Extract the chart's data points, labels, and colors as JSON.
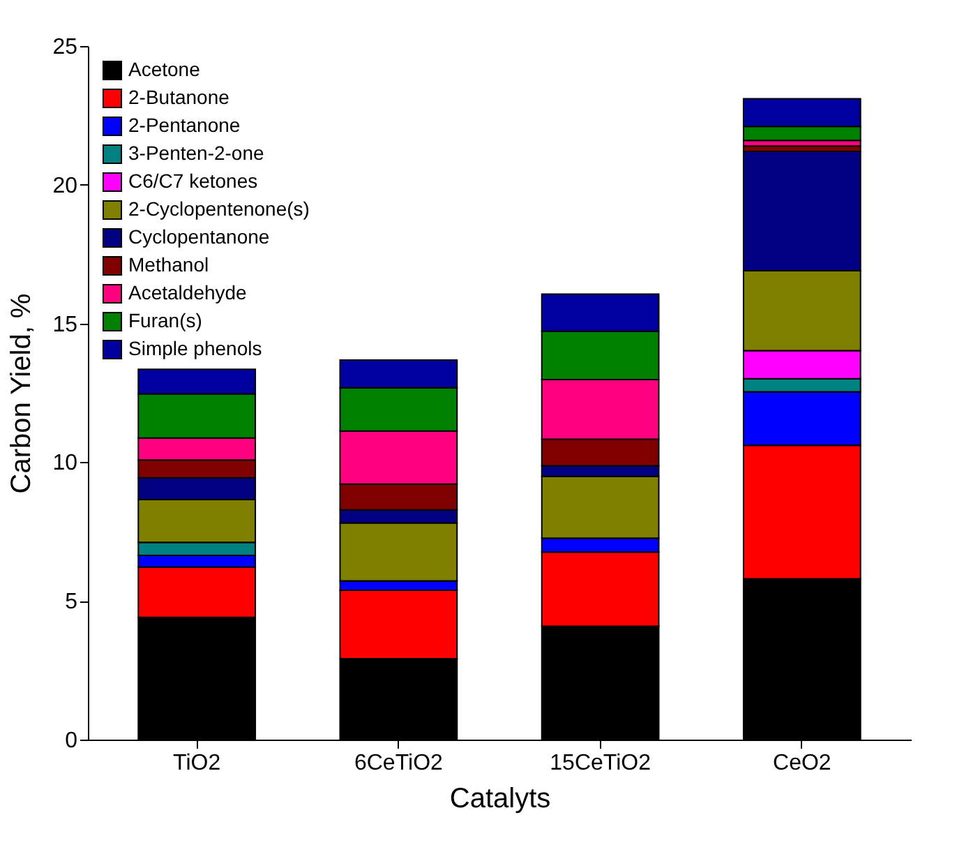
{
  "chart_data": {
    "type": "bar",
    "stacked": true,
    "xlabel": "Catalyts",
    "ylabel": "Carbon Yield, %",
    "categories": [
      "TiO2",
      "6CeTiO2",
      "15CeTiO2",
      "CeO2"
    ],
    "ylim": [
      0,
      25
    ],
    "yticks": [
      0,
      5,
      10,
      15,
      20,
      25
    ],
    "grid": false,
    "legend": "top left",
    "series": [
      {
        "name": "Acetone",
        "color": "#000000",
        "values": [
          4.41,
          2.92,
          4.09,
          5.8
        ]
      },
      {
        "name": "2-Butanone",
        "color": "#ff0000",
        "values": [
          1.81,
          2.46,
          2.67,
          4.81
        ]
      },
      {
        "name": "2-Pentanone",
        "color": "#0000ff",
        "values": [
          0.42,
          0.34,
          0.5,
          1.93
        ]
      },
      {
        "name": "3-Penten-2-one",
        "color": "#008080",
        "values": [
          0.47,
          0,
          0,
          0.47
        ]
      },
      {
        "name": "C6/C7 ketones",
        "color": "#ff00ff",
        "values": [
          0,
          0,
          0,
          1.01
        ]
      },
      {
        "name": "2-Cyclopentenone(s)",
        "color": "#808000",
        "values": [
          1.54,
          2.09,
          2.23,
          2.88
        ]
      },
      {
        "name": "Cyclopentanone",
        "color": "#000080",
        "values": [
          0.79,
          0.47,
          0.38,
          4.3
        ]
      },
      {
        "name": "Methanol",
        "color": "#800000",
        "values": [
          0.64,
          0.93,
          0.96,
          0.2
        ]
      },
      {
        "name": "Acetaldehyde",
        "color": "#ff0080",
        "values": [
          0.79,
          1.91,
          2.15,
          0.2
        ]
      },
      {
        "name": "Furan(s)",
        "color": "#008000",
        "values": [
          1.59,
          1.56,
          1.74,
          0.5
        ]
      },
      {
        "name": "Simple phenols",
        "color": "#0000a0",
        "values": [
          0.89,
          1.0,
          1.34,
          1.0
        ]
      }
    ]
  }
}
